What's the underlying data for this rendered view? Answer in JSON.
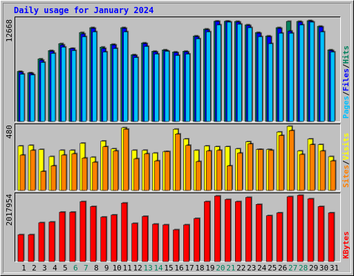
{
  "chart_data": [
    {
      "type": "bar",
      "title": "Daily usage for January 2024",
      "ylim": [
        0,
        13100
      ],
      "yticks": [
        12668
      ],
      "legend_separator": "/",
      "series": [
        {
          "name": "Hits",
          "color": "#00805c",
          "values": [
            6288,
            6113,
            7860,
            8908,
            9781,
            9170,
            11178,
            11790,
            9344,
            9694,
            11790,
            8384,
            9868,
            8820,
            8995,
            8733,
            8820,
            10742,
            11615,
            12600,
            12600,
            12575,
            12139,
            11178,
            10742,
            11790,
            12575,
            12575,
            12668,
            11964,
            8995
          ]
        },
        {
          "name": "Files",
          "color": "#0000ff",
          "values": [
            6200,
            6026,
            7685,
            8820,
            9606,
            9170,
            11004,
            11702,
            9170,
            9606,
            11702,
            8296,
            9781,
            8733,
            8908,
            8646,
            8733,
            10654,
            11528,
            12575,
            12575,
            12488,
            12052,
            11091,
            10654,
            11702,
            11353,
            12488,
            12600,
            11877,
            8908
          ]
        },
        {
          "name": "Pages",
          "color": "#00c0ff",
          "values": [
            5938,
            5851,
            7423,
            8558,
            9344,
            8908,
            10654,
            11266,
            8733,
            9170,
            11266,
            8034,
            9432,
            8471,
            8820,
            8296,
            8471,
            10392,
            11266,
            12139,
            12488,
            12226,
            11790,
            10654,
            9781,
            11091,
            11091,
            12139,
            12488,
            11266,
            8733
          ]
        }
      ]
    },
    {
      "type": "bar",
      "ylim": [
        0,
        496
      ],
      "yticks": [
        480
      ],
      "legend_separator": "/",
      "series": [
        {
          "name": "Visits",
          "color": "#ffff00",
          "values": [
            332,
            337,
            306,
            253,
            300,
            300,
            353,
            248,
            369,
            311,
            469,
            300,
            300,
            279,
            290,
            458,
            385,
            300,
            332,
            327,
            327,
            311,
            364,
            306,
            306,
            437,
            480,
            295,
            385,
            343,
            253
          ]
        },
        {
          "name": "Sites",
          "color": "#ff8000",
          "values": [
            264,
            300,
            142,
            184,
            264,
            274,
            242,
            211,
            327,
            295,
            458,
            237,
            274,
            221,
            290,
            422,
            337,
            216,
            295,
            300,
            184,
            279,
            348,
            306,
            300,
            411,
            448,
            269,
            343,
            295,
            221
          ]
        }
      ]
    },
    {
      "type": "bar",
      "ylim": [
        0,
        2082350
      ],
      "yticks": [
        2017954
      ],
      "categories": [
        "1",
        "2",
        "3",
        "4",
        "5",
        "6",
        "7",
        "8",
        "9",
        "10",
        "11",
        "12",
        "13",
        "14",
        "15",
        "16",
        "17",
        "18",
        "19",
        "20",
        "21",
        "22",
        "23",
        "24",
        "25",
        "26",
        "27",
        "28",
        "29",
        "30",
        "31"
      ],
      "category_colors": [
        "#000",
        "#000",
        "#000",
        "#000",
        "#000",
        "#00805c",
        "#00805c",
        "#000",
        "#000",
        "#000",
        "#000",
        "#000",
        "#00805c",
        "#00805c",
        "#000",
        "#000",
        "#000",
        "#000",
        "#000",
        "#00805c",
        "#00805c",
        "#000",
        "#000",
        "#000",
        "#000",
        "#000",
        "#00805c",
        "#00805c",
        "#000",
        "#000",
        "#000"
      ],
      "series": [
        {
          "name": "KBytes",
          "color": "#ff0000",
          "values": [
            815746,
            815746,
            1180685,
            1202152,
            1502690,
            1502690,
            1824695,
            1674426,
            1352421,
            1416822,
            1781761,
            1159218,
            1373888,
            1137751,
            1116284,
            966015,
            1116284,
            1309487,
            1824695,
            1996431,
            1889096,
            1824695,
            1953497,
            1738827,
            1395355,
            1481223,
            1974964,
            2017954,
            1910563,
            1674426,
            1481223
          ]
        }
      ]
    }
  ]
}
